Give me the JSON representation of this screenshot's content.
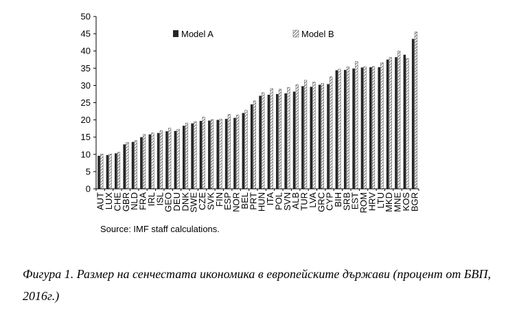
{
  "chart_data": {
    "type": "bar",
    "title": "",
    "xlabel": "",
    "ylabel": "",
    "ylim": [
      0,
      50
    ],
    "yticks": [
      "0",
      "5",
      "10",
      "15",
      "20",
      "25",
      "30",
      "35",
      "40",
      "45",
      "50"
    ],
    "categories": [
      "AUT",
      "LUX",
      "CHE",
      "GBR",
      "NLD",
      "FRA",
      "IRL",
      "ISL",
      "GEO",
      "DEU",
      "DNK",
      "SWE",
      "CZE",
      "SVK",
      "FIN",
      "ESP",
      "NOR",
      "BEL",
      "PRT",
      "HUN",
      "ITA",
      "POL",
      "SVN",
      "ALB",
      "TUR",
      "LVA",
      "GRC",
      "CYP",
      "BIH",
      "SRB",
      "EST",
      "ROM",
      "HRV",
      "LTU",
      "MKD",
      "MNE",
      "KOS",
      "BGR"
    ],
    "series": [
      {
        "name": "Model A",
        "values": [
          9.6,
          9.8,
          10.3,
          12.9,
          13.6,
          15.0,
          15.8,
          16.2,
          16.7,
          16.8,
          18.3,
          19.0,
          19.7,
          19.8,
          20.0,
          20.3,
          20.6,
          22.0,
          24.5,
          27.0,
          27.3,
          27.5,
          27.7,
          28.2,
          29.8,
          29.6,
          30.2,
          30.4,
          34.4,
          34.5,
          34.9,
          35.2,
          35.3,
          35.3,
          37.5,
          38.2,
          38.9,
          43.5
        ]
      },
      {
        "name": "Model B",
        "values": [
          10.1,
          10.1,
          10.6,
          13.5,
          14.0,
          15.8,
          16.2,
          16.9,
          17.6,
          17.3,
          19.1,
          19.5,
          20.8,
          20.1,
          20.2,
          21.6,
          21.4,
          22.8,
          25.5,
          27.9,
          29.1,
          28.9,
          29.4,
          30.2,
          31.5,
          31.0,
          30.6,
          32.5,
          34.7,
          35.4,
          37.0,
          35.4,
          35.5,
          36.6,
          38.1,
          40.0,
          37.8,
          45.5
        ]
      }
    ],
    "legend": [
      "Model A",
      "Model B"
    ],
    "legend_position": "top",
    "grid": false
  },
  "colors": {
    "model_a": "#262626",
    "model_b_stripe": "#4d4d4d",
    "axis": "#000000"
  },
  "source_note": "Source: IMF staff calculations.",
  "caption": "Фигура 1. Размер на сенчестата икономика в европейските държави (процент от БВП, 2016г.)"
}
